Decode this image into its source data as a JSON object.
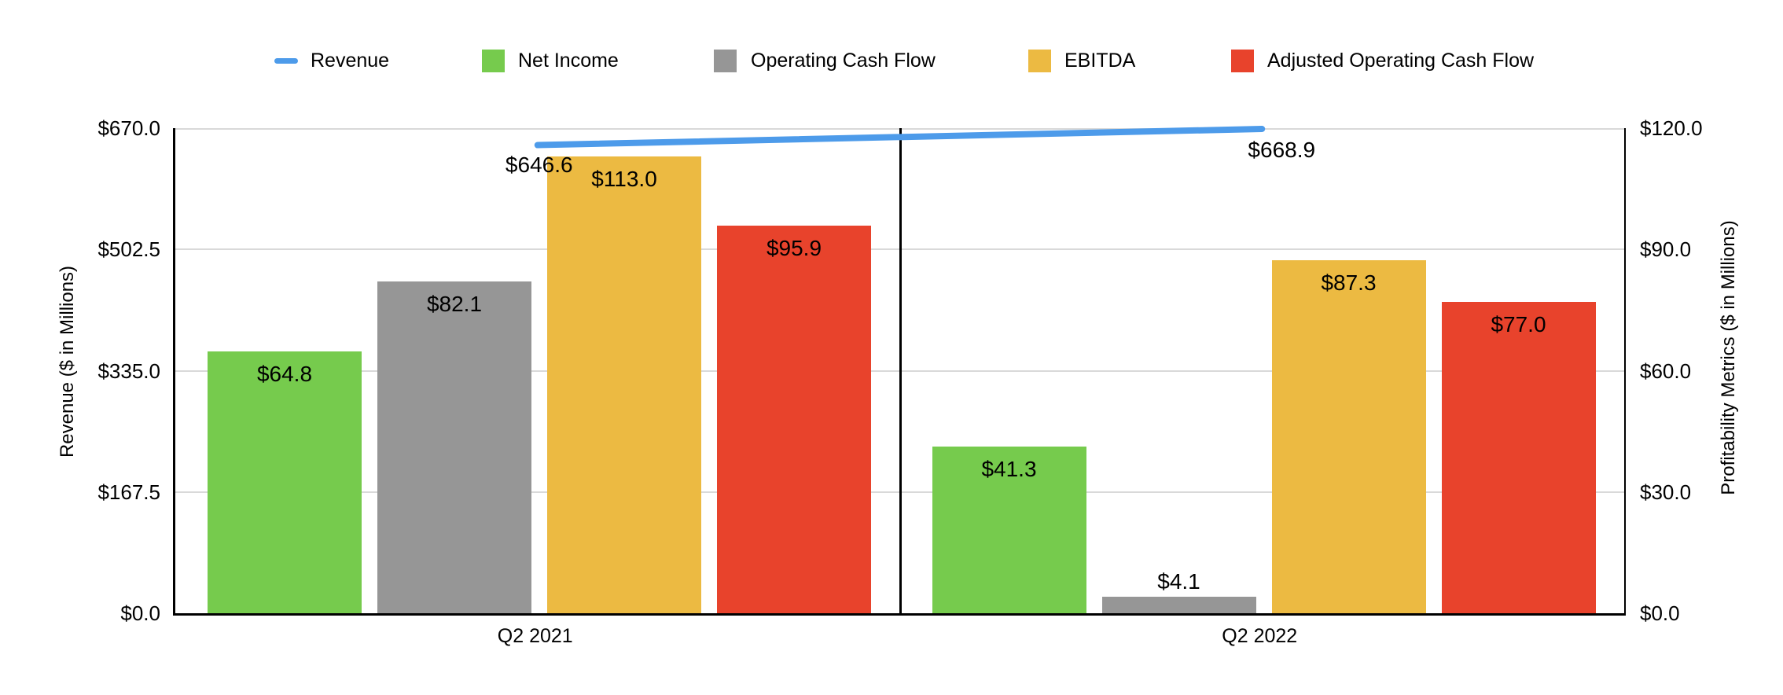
{
  "legend": {
    "items": [
      {
        "label": "Revenue",
        "marker": "line",
        "color": "#4d9bea"
      },
      {
        "label": "Net Income",
        "marker": "square",
        "color": "#76cb4d"
      },
      {
        "label": "Operating Cash Flow",
        "marker": "square",
        "color": "#969696"
      },
      {
        "label": "EBITDA",
        "marker": "square",
        "color": "#ecba42"
      },
      {
        "label": "Adjusted Operating Cash Flow",
        "marker": "square",
        "color": "#e8432c"
      }
    ]
  },
  "chart_data": {
    "type": "combo-bar-line",
    "categories": [
      "Q2 2021",
      "Q2 2022"
    ],
    "bar_series": [
      {
        "name": "Net Income",
        "color": "#76cb4d",
        "values": [
          64.8,
          41.3
        ],
        "labels": [
          "$64.8",
          "$41.3"
        ]
      },
      {
        "name": "Operating Cash Flow",
        "color": "#969696",
        "values": [
          82.1,
          4.1
        ],
        "labels": [
          "$82.1",
          "$4.1"
        ]
      },
      {
        "name": "EBITDA",
        "color": "#ecba42",
        "values": [
          113.0,
          87.3
        ],
        "labels": [
          "$113.0",
          "$87.3"
        ]
      },
      {
        "name": "Adjusted Operating Cash Flow",
        "color": "#e8432c",
        "values": [
          95.9,
          77.0
        ],
        "labels": [
          "$95.9",
          "$77.0"
        ]
      }
    ],
    "line_series": {
      "name": "Revenue",
      "color": "#4d9bea",
      "values": [
        646.6,
        668.9
      ],
      "labels": [
        "$646.6",
        "$668.9"
      ]
    },
    "left_axis": {
      "title": "Revenue ($ in Millions)",
      "min": 0,
      "max": 670,
      "ticks": [
        "$670.0",
        "$502.5",
        "$335.0",
        "$167.5",
        "$0.0"
      ]
    },
    "right_axis": {
      "title": "Profitability Metrics ($ in Millions)",
      "min": 0,
      "max": 120,
      "ticks": [
        "$120.0",
        "$90.0",
        "$60.0",
        "$30.0",
        "$0.0"
      ]
    },
    "grid": true,
    "legend_position": "top",
    "colors": {
      "gridline": "#d9d9d9",
      "axis": "#000000",
      "background": "#ffffff"
    }
  }
}
